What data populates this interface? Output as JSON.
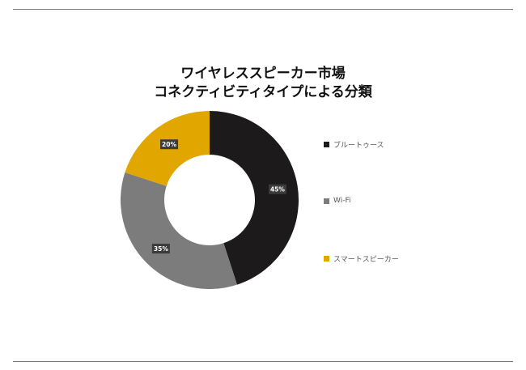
{
  "title_lines": [
    "ワイヤレススピーカー市場",
    "コネクティビティタイプによる分類"
  ],
  "colors": {
    "bluetooth": "#1c1a1b",
    "wifi": "#7c7c7c",
    "smart": "#e1a600",
    "text": "#1a1a1a",
    "rule": "#7a7a7a"
  },
  "chart_data": {
    "type": "pie",
    "donut": true,
    "categories": [
      "ブルートゥース",
      "Wi-Fi",
      "スマートスピーカー"
    ],
    "values": [
      45,
      35,
      20
    ],
    "data_labels": [
      "45%",
      "35%",
      "20%"
    ],
    "legend_position": "right",
    "title": "ワイヤレススピーカー市場 コネクティビティタイプによる分類"
  }
}
